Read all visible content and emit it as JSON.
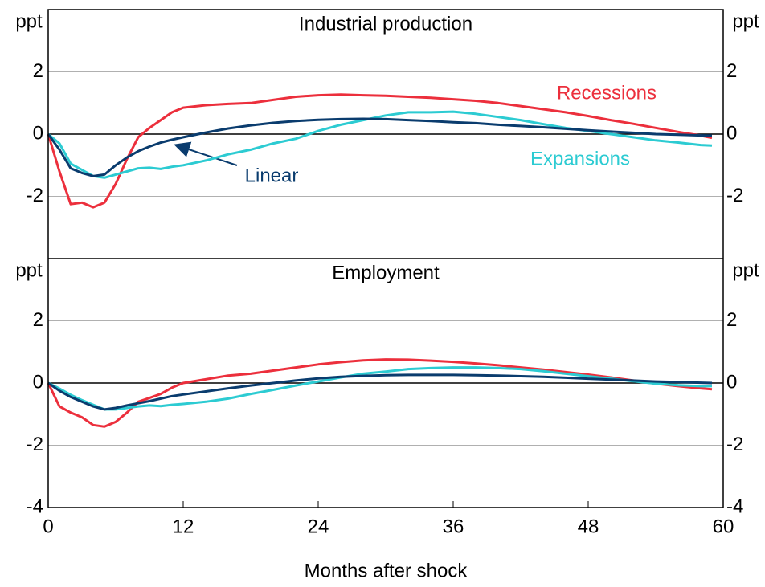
{
  "chart_data": [
    {
      "type": "line",
      "title": "Industrial production",
      "y_label": "ppt",
      "x": [
        0,
        1,
        2,
        3,
        4,
        5,
        6,
        7,
        8,
        9,
        10,
        11,
        12,
        14,
        16,
        18,
        20,
        22,
        24,
        26,
        28,
        30,
        32,
        34,
        36,
        38,
        40,
        42,
        44,
        46,
        48,
        50,
        52,
        54,
        56,
        58,
        59
      ],
      "xlim": [
        0,
        60
      ],
      "ylim": [
        -4,
        4
      ],
      "yticks": [
        -2,
        0,
        2
      ],
      "grid": true,
      "series": [
        {
          "name": "Recessions",
          "color": "#ec2f3c",
          "values": [
            0,
            -1.2,
            -2.25,
            -2.2,
            -2.35,
            -2.2,
            -1.6,
            -0.8,
            -0.1,
            0.2,
            0.45,
            0.7,
            0.85,
            0.93,
            0.97,
            1.0,
            1.1,
            1.2,
            1.25,
            1.27,
            1.25,
            1.23,
            1.2,
            1.17,
            1.12,
            1.07,
            1.0,
            0.9,
            0.8,
            0.7,
            0.58,
            0.45,
            0.33,
            0.2,
            0.07,
            -0.05,
            -0.12
          ]
        },
        {
          "name": "Expansions",
          "color": "#2ccbd2",
          "values": [
            0,
            -0.3,
            -0.95,
            -1.15,
            -1.35,
            -1.4,
            -1.3,
            -1.2,
            -1.1,
            -1.08,
            -1.12,
            -1.05,
            -1.0,
            -0.85,
            -0.65,
            -0.5,
            -0.3,
            -0.15,
            0.1,
            0.3,
            0.45,
            0.6,
            0.7,
            0.7,
            0.72,
            0.65,
            0.55,
            0.45,
            0.32,
            0.2,
            0.1,
            0.0,
            -0.1,
            -0.2,
            -0.27,
            -0.35,
            -0.37
          ]
        },
        {
          "name": "Linear",
          "color": "#0a3c6e",
          "values": [
            0,
            -0.5,
            -1.1,
            -1.25,
            -1.35,
            -1.3,
            -1.0,
            -0.75,
            -0.55,
            -0.4,
            -0.27,
            -0.18,
            -0.1,
            0.05,
            0.18,
            0.28,
            0.36,
            0.42,
            0.46,
            0.48,
            0.49,
            0.48,
            0.45,
            0.42,
            0.38,
            0.35,
            0.3,
            0.26,
            0.22,
            0.17,
            0.12,
            0.08,
            0.04,
            0.0,
            -0.02,
            -0.04,
            -0.05
          ]
        }
      ]
    },
    {
      "type": "line",
      "title": "Employment",
      "y_label": "ppt",
      "x_label": "Months after shock",
      "x": [
        0,
        1,
        2,
        3,
        4,
        5,
        6,
        7,
        8,
        9,
        10,
        11,
        12,
        14,
        16,
        18,
        20,
        22,
        24,
        26,
        28,
        30,
        32,
        34,
        36,
        38,
        40,
        42,
        44,
        46,
        48,
        50,
        52,
        54,
        56,
        58,
        59
      ],
      "xlim": [
        0,
        60
      ],
      "xticks": [
        0,
        12,
        24,
        36,
        48,
        60
      ],
      "ylim": [
        -4,
        4
      ],
      "yticks": [
        -4,
        -2,
        0,
        2
      ],
      "grid": true,
      "series": [
        {
          "color": "#ec2f3c",
          "values": [
            0,
            -0.75,
            -0.95,
            -1.1,
            -1.35,
            -1.4,
            -1.25,
            -0.95,
            -0.6,
            -0.48,
            -0.35,
            -0.15,
            0.0,
            0.12,
            0.24,
            0.3,
            0.4,
            0.5,
            0.6,
            0.67,
            0.73,
            0.76,
            0.75,
            0.72,
            0.68,
            0.63,
            0.57,
            0.5,
            0.43,
            0.35,
            0.27,
            0.18,
            0.08,
            -0.02,
            -0.1,
            -0.17,
            -0.2
          ]
        },
        {
          "color": "#2ccbd2",
          "values": [
            0,
            -0.18,
            -0.38,
            -0.55,
            -0.7,
            -0.85,
            -0.85,
            -0.8,
            -0.75,
            -0.72,
            -0.74,
            -0.7,
            -0.67,
            -0.6,
            -0.5,
            -0.35,
            -0.22,
            -0.08,
            0.05,
            0.18,
            0.3,
            0.37,
            0.45,
            0.48,
            0.5,
            0.5,
            0.48,
            0.45,
            0.38,
            0.3,
            0.22,
            0.14,
            0.06,
            -0.02,
            -0.07,
            -0.1,
            -0.1
          ]
        },
        {
          "color": "#0a3c6e",
          "values": [
            0,
            -0.25,
            -0.45,
            -0.6,
            -0.75,
            -0.85,
            -0.8,
            -0.72,
            -0.65,
            -0.58,
            -0.5,
            -0.42,
            -0.37,
            -0.27,
            -0.17,
            -0.08,
            0.0,
            0.08,
            0.15,
            0.2,
            0.23,
            0.25,
            0.26,
            0.26,
            0.26,
            0.25,
            0.24,
            0.22,
            0.2,
            0.17,
            0.14,
            0.11,
            0.08,
            0.05,
            0.03,
            0.01,
            0.0
          ]
        }
      ]
    }
  ]
}
